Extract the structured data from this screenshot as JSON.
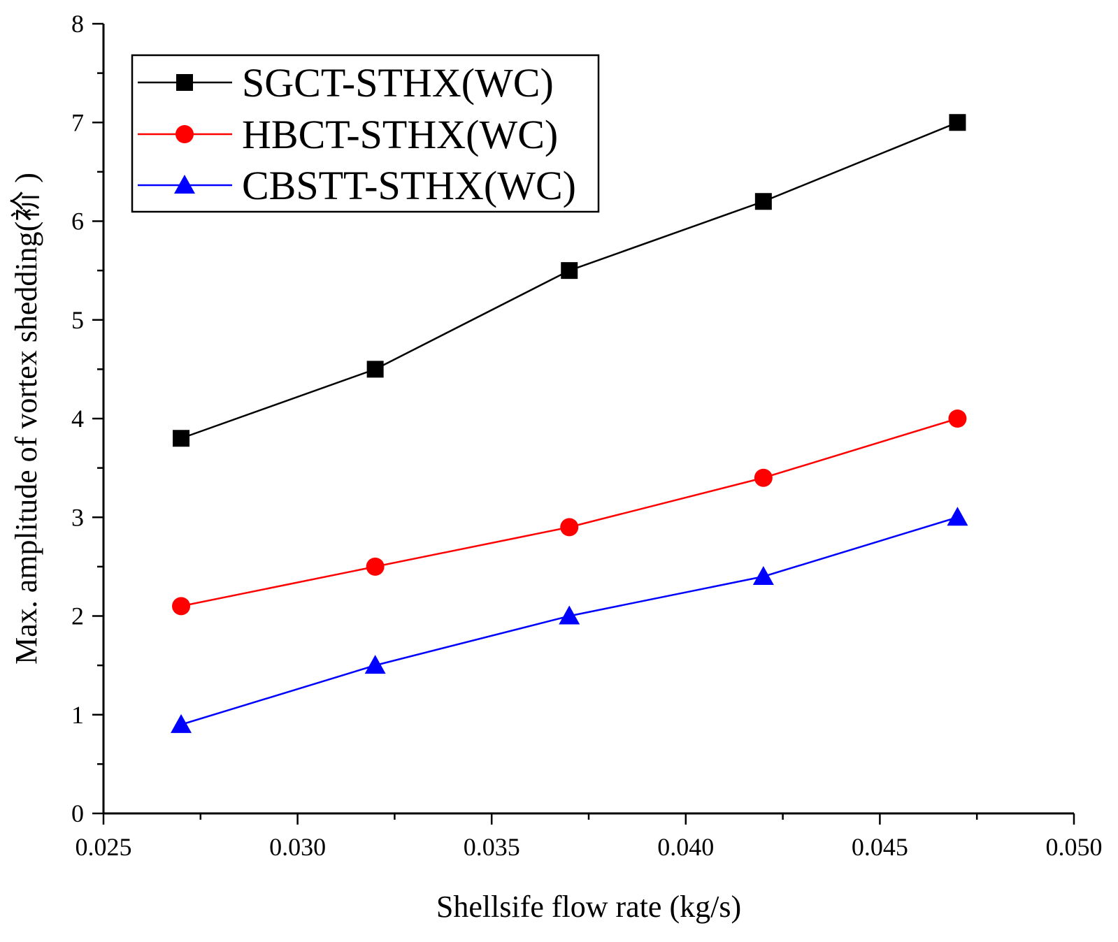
{
  "chart_data": {
    "type": "line",
    "title": "",
    "xlabel": "Shellsife flow rate (kg/s)",
    "ylabel": "Max. amplitude of vortex shedding(衸 )",
    "xlim": [
      0.025,
      0.05
    ],
    "ylim": [
      0,
      8
    ],
    "x_ticks": [
      {
        "value": 0.025,
        "label": "0.025"
      },
      {
        "value": 0.03,
        "label": "0.030"
      },
      {
        "value": 0.035,
        "label": "0.035"
      },
      {
        "value": 0.04,
        "label": "0.040"
      },
      {
        "value": 0.045,
        "label": "0.045"
      },
      {
        "value": 0.05,
        "label": "0.050"
      }
    ],
    "y_ticks": [
      {
        "value": 0,
        "label": "0"
      },
      {
        "value": 1,
        "label": "1"
      },
      {
        "value": 2,
        "label": "2"
      },
      {
        "value": 3,
        "label": "3"
      },
      {
        "value": 4,
        "label": "4"
      },
      {
        "value": 5,
        "label": "5"
      },
      {
        "value": 6,
        "label": "6"
      },
      {
        "value": 7,
        "label": "7"
      },
      {
        "value": 8,
        "label": "8"
      }
    ],
    "x": [
      0.027,
      0.032,
      0.037,
      0.042,
      0.047
    ],
    "series": [
      {
        "name": "SGCT-STHX(WC)",
        "values": [
          3.8,
          4.5,
          5.5,
          6.2,
          7.0
        ],
        "color": "#000000",
        "marker": "square"
      },
      {
        "name": "HBCT-STHX(WC)",
        "values": [
          2.1,
          2.5,
          2.9,
          3.4,
          4.0
        ],
        "color": "#ff0000",
        "marker": "circle"
      },
      {
        "name": "CBSTT-STHX(WC)",
        "values": [
          0.9,
          1.5,
          2.0,
          2.4,
          3.0
        ],
        "color": "#0000ff",
        "marker": "triangle"
      }
    ],
    "legend_position": "top-left",
    "grid": false
  }
}
